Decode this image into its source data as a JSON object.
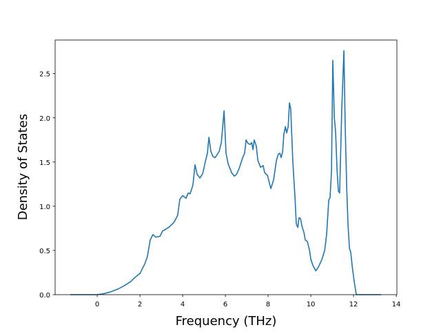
{
  "chart_data": {
    "type": "line",
    "title": "",
    "xlabel": "Frequency (THz)",
    "ylabel": "Density of States",
    "xlim": [
      -1.97,
      14.03
    ],
    "ylim": [
      0,
      2.88
    ],
    "xticks": [
      "0",
      "2",
      "4",
      "6",
      "8",
      "10",
      "12",
      "14"
    ],
    "xtick_values": [
      0,
      2,
      4,
      6,
      8,
      10,
      12,
      14
    ],
    "yticks": [
      "0.0",
      "0.5",
      "1.0",
      "1.5",
      "2.0",
      "2.5"
    ],
    "ytick_values": [
      0,
      0.5,
      1.0,
      1.5,
      2.0,
      2.5
    ],
    "grid": false,
    "series": [
      {
        "name": "DOS",
        "color": "#1f77b4",
        "x": [
          -1.26,
          0,
          0.29,
          0.6,
          0.94,
          1.26,
          1.58,
          1.74,
          2.0,
          2.23,
          2.35,
          2.48,
          2.61,
          2.74,
          2.94,
          3.06,
          3.35,
          3.6,
          3.77,
          3.87,
          4.0,
          4.16,
          4.26,
          4.35,
          4.48,
          4.58,
          4.68,
          4.81,
          4.94,
          5.06,
          5.16,
          5.23,
          5.32,
          5.42,
          5.52,
          5.71,
          5.81,
          5.94,
          6.03,
          6.13,
          6.29,
          6.42,
          6.52,
          6.65,
          6.81,
          6.9,
          6.97,
          7.06,
          7.16,
          7.23,
          7.29,
          7.35,
          7.45,
          7.52,
          7.65,
          7.77,
          7.84,
          7.97,
          8.13,
          8.26,
          8.39,
          8.48,
          8.55,
          8.61,
          8.68,
          8.74,
          8.81,
          8.87,
          8.94,
          9.0,
          9.06,
          9.16,
          9.26,
          9.32,
          9.39,
          9.45,
          9.52,
          9.58,
          9.68,
          9.74,
          9.84,
          9.94,
          10.0,
          10.1,
          10.23,
          10.35,
          10.52,
          10.65,
          10.74,
          10.84,
          10.9,
          10.97,
          11.03,
          11.1,
          11.16,
          11.23,
          11.29,
          11.35,
          11.45,
          11.55,
          11.61,
          11.68,
          11.74,
          11.81,
          11.87,
          11.94,
          12.03,
          12.13,
          13.29
        ],
        "y": [
          0,
          0,
          0.01,
          0.03,
          0.06,
          0.1,
          0.15,
          0.19,
          0.24,
          0.35,
          0.43,
          0.62,
          0.68,
          0.65,
          0.66,
          0.72,
          0.76,
          0.82,
          0.9,
          1.08,
          1.12,
          1.09,
          1.15,
          1.14,
          1.24,
          1.47,
          1.36,
          1.32,
          1.37,
          1.5,
          1.6,
          1.78,
          1.62,
          1.56,
          1.55,
          1.62,
          1.72,
          2.08,
          1.6,
          1.48,
          1.38,
          1.34,
          1.36,
          1.43,
          1.55,
          1.6,
          1.75,
          1.71,
          1.7,
          1.72,
          1.64,
          1.75,
          1.68,
          1.52,
          1.44,
          1.46,
          1.38,
          1.35,
          1.2,
          1.3,
          1.52,
          1.59,
          1.6,
          1.55,
          1.62,
          1.82,
          1.9,
          1.83,
          1.9,
          2.17,
          2.1,
          1.5,
          1.1,
          0.8,
          0.76,
          0.87,
          0.86,
          0.78,
          0.7,
          0.62,
          0.6,
          0.5,
          0.4,
          0.33,
          0.27,
          0.31,
          0.4,
          0.5,
          0.68,
          1.07,
          1.1,
          1.4,
          2.65,
          2.0,
          1.85,
          1.4,
          1.17,
          1.15,
          2.1,
          2.76,
          1.9,
          1.2,
          0.8,
          0.52,
          0.48,
          0.32,
          0.15,
          0,
          0
        ]
      }
    ]
  }
}
